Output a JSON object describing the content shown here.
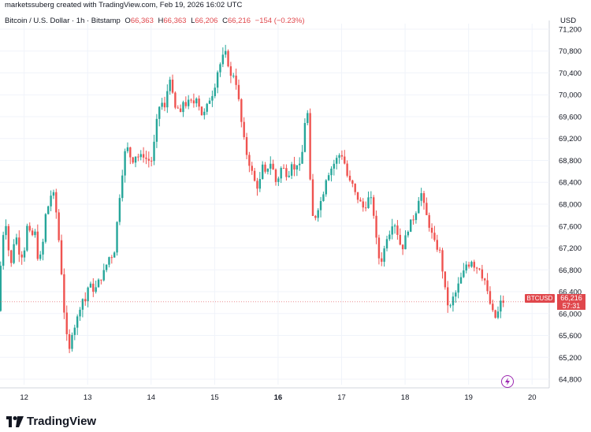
{
  "header": {
    "attribution": "marketssuberg created with TradingView.com, Feb 19, 2026 16:02 UTC",
    "symbol": "Bitcoin / U.S. Dollar · 1h · Bitstamp",
    "open_label": "O",
    "open": "66,363",
    "high_label": "H",
    "high": "66,363",
    "low_label": "L",
    "low": "66,206",
    "close_label": "C",
    "close": "66,216",
    "change": "−154 (−0.23%)",
    "currency": "USD"
  },
  "price_badge": {
    "ticker": "BTCUSD",
    "price": "66,216",
    "countdown": "57:31"
  },
  "footer": {
    "brand": "TradingView"
  },
  "colors": {
    "up": "#26a69a",
    "down": "#ef5350",
    "badge": "#e0474c",
    "grid": "#f0f3fa"
  },
  "chart_data": {
    "type": "candlestick",
    "title": "Bitcoin / U.S. Dollar · 1h · Bitstamp",
    "ylabel": "USD",
    "ylim": [
      64700,
      71300
    ],
    "y_ticks": [
      "71,200",
      "70,800",
      "70,400",
      "70,000",
      "69,600",
      "69,200",
      "68,800",
      "68,400",
      "68,000",
      "67,600",
      "67,200",
      "66,800",
      "66,400",
      "66,000",
      "65,600",
      "65,200",
      "64,800"
    ],
    "x_ticks": [
      {
        "label": "12",
        "day": 12,
        "bold": false
      },
      {
        "label": "13",
        "day": 13,
        "bold": false
      },
      {
        "label": "14",
        "day": 14,
        "bold": false
      },
      {
        "label": "15",
        "day": 15,
        "bold": false
      },
      {
        "label": "16",
        "day": 16,
        "bold": true
      },
      {
        "label": "17",
        "day": 17,
        "bold": false
      },
      {
        "label": "18",
        "day": 18,
        "bold": false
      },
      {
        "label": "19",
        "day": 19,
        "bold": false
      },
      {
        "label": "20",
        "day": 20,
        "bold": false
      }
    ],
    "x_range_days": [
      11.62,
      20.27
    ],
    "last_price": 66216,
    "trend_points": [
      [
        11.63,
        66050
      ],
      [
        11.66,
        66700
      ],
      [
        11.7,
        67300
      ],
      [
        11.74,
        67800
      ],
      [
        11.77,
        67500
      ],
      [
        11.81,
        67000
      ],
      [
        11.84,
        66900
      ],
      [
        11.88,
        67300
      ],
      [
        11.93,
        67400
      ],
      [
        11.98,
        67000
      ],
      [
        12.05,
        67200
      ],
      [
        12.1,
        67700
      ],
      [
        12.15,
        67300
      ],
      [
        12.2,
        67600
      ],
      [
        12.27,
        66900
      ],
      [
        12.33,
        67200
      ],
      [
        12.38,
        67800
      ],
      [
        12.43,
        68000
      ],
      [
        12.47,
        68200
      ],
      [
        12.52,
        68150
      ],
      [
        12.56,
        67700
      ],
      [
        12.6,
        67200
      ],
      [
        12.64,
        66600
      ],
      [
        12.68,
        65900
      ],
      [
        12.72,
        65500
      ],
      [
        12.76,
        65300
      ],
      [
        12.8,
        65700
      ],
      [
        12.85,
        65800
      ],
      [
        12.9,
        66000
      ],
      [
        12.95,
        66300
      ],
      [
        13.0,
        66200
      ],
      [
        13.05,
        66500
      ],
      [
        13.1,
        66500
      ],
      [
        13.15,
        66400
      ],
      [
        13.22,
        66600
      ],
      [
        13.28,
        66700
      ],
      [
        13.34,
        66900
      ],
      [
        13.4,
        67100
      ],
      [
        13.45,
        67000
      ],
      [
        13.5,
        67600
      ],
      [
        13.55,
        68200
      ],
      [
        13.6,
        68700
      ],
      [
        13.65,
        69100
      ],
      [
        13.7,
        68900
      ],
      [
        13.75,
        68800
      ],
      [
        13.8,
        68900
      ],
      [
        13.86,
        68850
      ],
      [
        13.92,
        68900
      ],
      [
        13.98,
        68800
      ],
      [
        14.05,
        68800
      ],
      [
        14.1,
        69200
      ],
      [
        14.15,
        69700
      ],
      [
        14.2,
        69900
      ],
      [
        14.25,
        69700
      ],
      [
        14.3,
        70100
      ],
      [
        14.35,
        70400
      ],
      [
        14.4,
        69700
      ],
      [
        14.45,
        69800
      ],
      [
        14.5,
        69600
      ],
      [
        14.55,
        69900
      ],
      [
        14.6,
        69800
      ],
      [
        14.65,
        69900
      ],
      [
        14.7,
        69800
      ],
      [
        14.75,
        70000
      ],
      [
        14.8,
        69800
      ],
      [
        14.85,
        69600
      ],
      [
        14.9,
        69700
      ],
      [
        14.95,
        69900
      ],
      [
        15.0,
        70000
      ],
      [
        15.05,
        70200
      ],
      [
        15.1,
        70500
      ],
      [
        15.15,
        70600
      ],
      [
        15.2,
        70800
      ],
      [
        15.25,
        70600
      ],
      [
        15.3,
        70300
      ],
      [
        15.35,
        70400
      ],
      [
        15.4,
        70100
      ],
      [
        15.45,
        69600
      ],
      [
        15.5,
        69200
      ],
      [
        15.55,
        68900
      ],
      [
        15.6,
        68700
      ],
      [
        15.65,
        68500
      ],
      [
        15.7,
        68300
      ],
      [
        15.75,
        68400
      ],
      [
        15.8,
        68700
      ],
      [
        15.85,
        68500
      ],
      [
        15.9,
        68800
      ],
      [
        15.95,
        68700
      ],
      [
        16.0,
        68400
      ],
      [
        16.05,
        68500
      ],
      [
        16.1,
        68700
      ],
      [
        16.15,
        68600
      ],
      [
        16.2,
        68500
      ],
      [
        16.25,
        68800
      ],
      [
        16.3,
        68600
      ],
      [
        16.35,
        68800
      ],
      [
        16.4,
        68600
      ],
      [
        16.45,
        69400
      ],
      [
        16.5,
        69800
      ],
      [
        16.55,
        68300
      ],
      [
        16.6,
        67600
      ],
      [
        16.65,
        67900
      ],
      [
        16.7,
        68000
      ],
      [
        16.75,
        68200
      ],
      [
        16.8,
        68500
      ],
      [
        16.85,
        68600
      ],
      [
        16.9,
        68700
      ],
      [
        16.95,
        68800
      ],
      [
        17.0,
        68900
      ],
      [
        17.05,
        68900
      ],
      [
        17.1,
        68700
      ],
      [
        17.15,
        68400
      ],
      [
        17.2,
        68400
      ],
      [
        17.25,
        68200
      ],
      [
        17.3,
        68100
      ],
      [
        17.35,
        68000
      ],
      [
        17.4,
        67900
      ],
      [
        17.45,
        68100
      ],
      [
        17.5,
        68100
      ],
      [
        17.55,
        67800
      ],
      [
        17.6,
        67200
      ],
      [
        17.65,
        66900
      ],
      [
        17.7,
        67100
      ],
      [
        17.75,
        67400
      ],
      [
        17.8,
        67500
      ],
      [
        17.85,
        67700
      ],
      [
        17.9,
        67600
      ],
      [
        17.95,
        67300
      ],
      [
        18.0,
        67200
      ],
      [
        18.05,
        67400
      ],
      [
        18.1,
        67600
      ],
      [
        18.15,
        67700
      ],
      [
        18.2,
        67800
      ],
      [
        18.25,
        68100
      ],
      [
        18.3,
        68200
      ],
      [
        18.35,
        67900
      ],
      [
        18.4,
        67700
      ],
      [
        18.45,
        67500
      ],
      [
        18.5,
        67300
      ],
      [
        18.55,
        67200
      ],
      [
        18.6,
        67100
      ],
      [
        18.65,
        66600
      ],
      [
        18.7,
        66200
      ],
      [
        18.75,
        66100
      ],
      [
        18.8,
        66300
      ],
      [
        18.85,
        66400
      ],
      [
        18.9,
        66600
      ],
      [
        18.95,
        66700
      ],
      [
        19.0,
        66900
      ],
      [
        19.05,
        66900
      ],
      [
        19.1,
        67000
      ],
      [
        19.15,
        66800
      ],
      [
        19.2,
        66900
      ],
      [
        19.25,
        66700
      ],
      [
        19.3,
        66600
      ],
      [
        19.35,
        66300
      ],
      [
        19.4,
        66100
      ],
      [
        19.45,
        65900
      ],
      [
        19.5,
        66000
      ],
      [
        19.55,
        66216
      ]
    ]
  }
}
